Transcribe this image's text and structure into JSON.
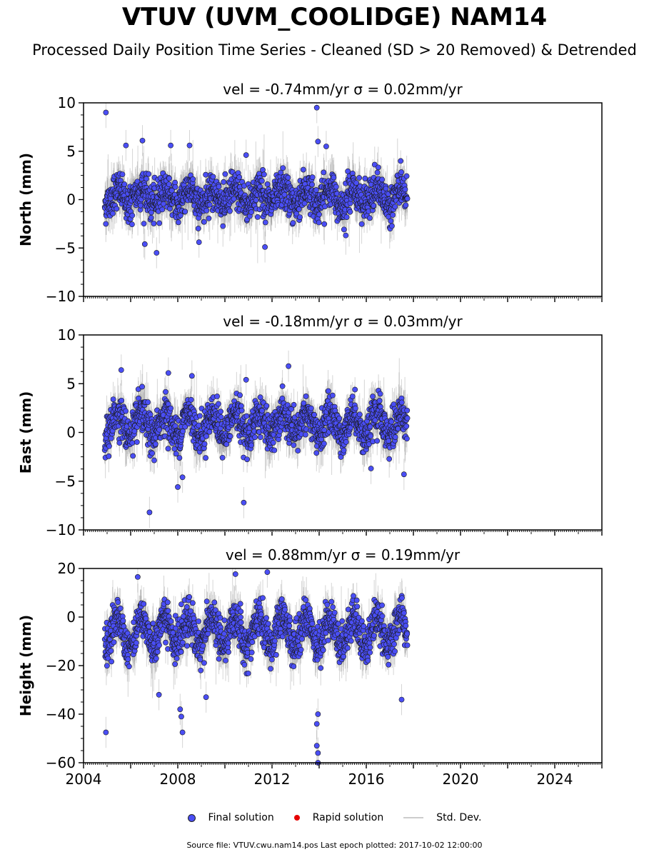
{
  "title": "VTUV (UVM_COOLIDGE) NAM14",
  "subtitle": "Processed Daily Position Time Series - Cleaned (SD > 20 Removed) & Detrended",
  "legend": {
    "final": "Final solution",
    "rapid": "Rapid solution",
    "sd": "Std. Dev."
  },
  "footer": "Source file: VTUV.cwu.nam14.pos  Last epoch plotted: 2017-10-02 12:00:00",
  "colors": {
    "final": "#4a4ef5",
    "rapid": "#e60000",
    "sd": "#888888"
  },
  "chart_data": [
    {
      "type": "scatter",
      "name": "north",
      "title": "vel = -0.74mm/yr   σ = 0.02mm/yr",
      "ylabel": "North (mm)",
      "xlim": [
        2004,
        2026
      ],
      "ylim": [
        -10,
        10
      ],
      "yticks": [
        -10,
        -5,
        0,
        5,
        10
      ],
      "ytick_labels": [
        "−10",
        "−5",
        "0",
        "5",
        "10"
      ],
      "data_range": [
        2004.9,
        2017.75
      ],
      "series": [
        {
          "name": "Final solution",
          "pattern": {
            "mean": 0.3,
            "amp": 0.8,
            "noise": 1.3,
            "trend": 0.02
          }
        }
      ],
      "outliers": [
        [
          2004.95,
          9.0
        ],
        [
          2005.8,
          5.6
        ],
        [
          2006.5,
          6.1
        ],
        [
          2007.7,
          5.6
        ],
        [
          2008.5,
          5.6
        ],
        [
          2010.9,
          4.6
        ],
        [
          2013.9,
          9.5
        ],
        [
          2013.95,
          6.0
        ],
        [
          2014.3,
          5.5
        ],
        [
          2006.6,
          -4.6
        ],
        [
          2007.1,
          -5.5
        ],
        [
          2011.7,
          -4.9
        ],
        [
          2008.9,
          -4.4
        ]
      ]
    },
    {
      "type": "scatter",
      "name": "east",
      "title": "vel = -0.18mm/yr   σ = 0.03mm/yr",
      "ylabel": "East (mm)",
      "xlim": [
        2004,
        2026
      ],
      "ylim": [
        -10,
        10
      ],
      "yticks": [
        -10,
        -5,
        0,
        5,
        10
      ],
      "ytick_labels": [
        "−10",
        "−5",
        "0",
        "5",
        "10"
      ],
      "data_range": [
        2004.9,
        2017.75
      ],
      "series": [
        {
          "name": "Final solution",
          "pattern": {
            "mean": 0.8,
            "amp": 1.2,
            "noise": 1.3,
            "trend": 0.0
          }
        }
      ],
      "outliers": [
        [
          2005.6,
          6.4
        ],
        [
          2007.6,
          6.1
        ],
        [
          2008.6,
          5.8
        ],
        [
          2010.9,
          5.4
        ],
        [
          2012.7,
          6.8
        ],
        [
          2006.8,
          -8.2
        ],
        [
          2010.8,
          -7.2
        ],
        [
          2008.0,
          -5.6
        ],
        [
          2008.2,
          -4.6
        ],
        [
          2017.6,
          -4.3
        ],
        [
          2016.2,
          -3.7
        ]
      ]
    },
    {
      "type": "scatter",
      "name": "height",
      "title": "vel = 0.88mm/yr   σ = 0.19mm/yr",
      "ylabel": "Height (mm)",
      "xlim": [
        2004,
        2026
      ],
      "ylim": [
        -60,
        20
      ],
      "yticks": [
        -60,
        -40,
        -20,
        0,
        20
      ],
      "ytick_labels": [
        "−60",
        "−40",
        "−20",
        "0",
        "20"
      ],
      "data_range": [
        2004.9,
        2017.75
      ],
      "series": [
        {
          "name": "Final solution",
          "pattern": {
            "mean": -6,
            "amp": 6,
            "noise": 5.5,
            "trend": 0.0
          }
        }
      ],
      "outliers": [
        [
          2004.95,
          -47.5
        ],
        [
          2008.2,
          -47.5
        ],
        [
          2008.15,
          -41
        ],
        [
          2008.1,
          -38
        ],
        [
          2013.95,
          -40
        ],
        [
          2013.9,
          -44
        ],
        [
          2013.9,
          -53
        ],
        [
          2013.95,
          -56
        ],
        [
          2013.95,
          -60
        ],
        [
          2017.5,
          -34
        ],
        [
          2011.8,
          18.5
        ],
        [
          2006.3,
          16.5
        ],
        [
          2007.2,
          -32
        ],
        [
          2009.2,
          -33
        ]
      ]
    }
  ],
  "xticks": [
    2004,
    2008,
    2012,
    2016,
    2020,
    2024
  ],
  "xtick_labels": [
    "2004",
    "2008",
    "2012",
    "2016",
    "2020",
    "2024"
  ]
}
